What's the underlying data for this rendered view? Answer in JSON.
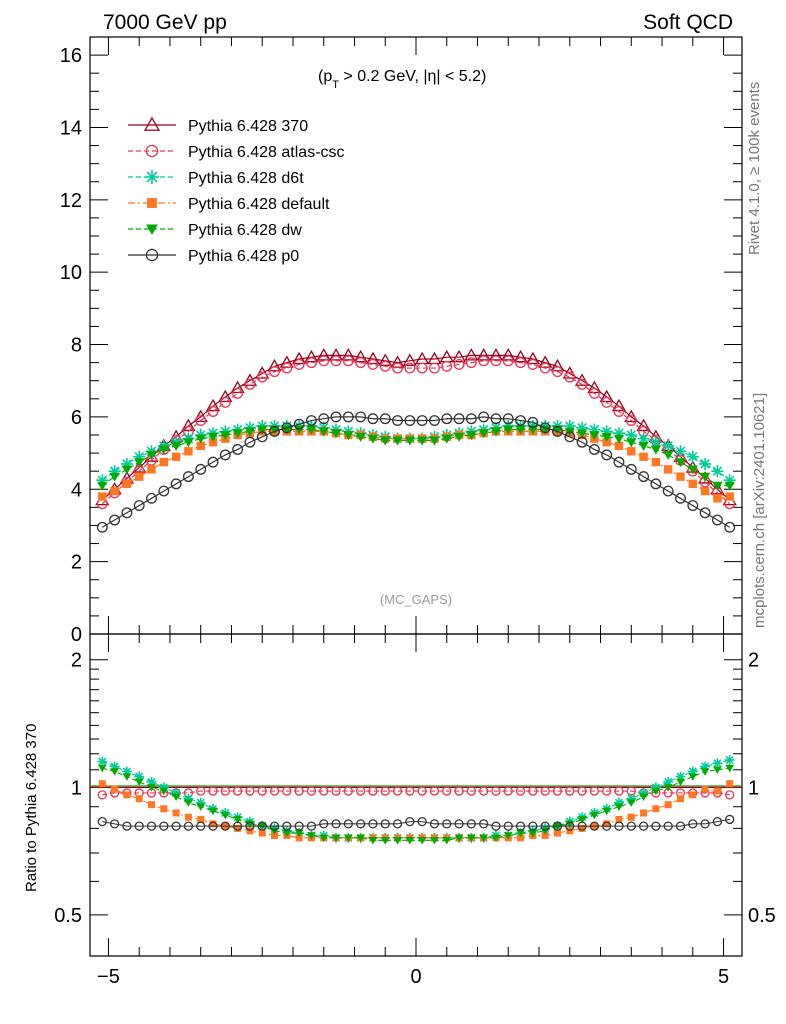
{
  "header": {
    "left": "7000 GeV pp",
    "right": "Soft QCD"
  },
  "side_labels": {
    "top": "Rivet 4.1.0, ≥ 100k events",
    "bottom": "mcplots.cern.ch [arXiv:2401.10621]"
  },
  "annotation": {
    "cut_prefix": "(p",
    "cut_sub": "T",
    "cut_suffix": " > 0.2 GeV, |η| < 5.2)",
    "analysis": "(MC_GAPS)"
  },
  "ratio_ylabel": "Ratio to Pythia 6.428 370",
  "chart_data": [
    {
      "type": "scatter",
      "panel": "main",
      "ylim": [
        0,
        16.5
      ],
      "xlim": [
        -5.3,
        5.3
      ],
      "yticks": [
        0,
        2,
        4,
        6,
        8,
        10,
        12,
        14,
        16
      ],
      "ytick_labels": [
        "0",
        "2",
        "4",
        "6",
        "8",
        "10",
        "12",
        "14",
        "16"
      ],
      "legend_position": "top-left",
      "x": [
        -5.1,
        -4.9,
        -4.7,
        -4.5,
        -4.3,
        -4.1,
        -3.9,
        -3.7,
        -3.5,
        -3.3,
        -3.1,
        -2.9,
        -2.7,
        -2.5,
        -2.3,
        -2.1,
        -1.9,
        -1.7,
        -1.5,
        -1.3,
        -1.1,
        -0.9,
        -0.7,
        -0.5,
        -0.3,
        -0.1,
        0.1,
        0.3,
        0.5,
        0.7,
        0.9,
        1.1,
        1.3,
        1.5,
        1.7,
        1.9,
        2.1,
        2.3,
        2.5,
        2.7,
        2.9,
        3.1,
        3.3,
        3.5,
        3.7,
        3.9,
        4.1,
        4.3,
        4.5,
        4.7,
        4.9,
        5.1
      ],
      "series": [
        {
          "name": "Pythia 6.428 370",
          "color": "#99001a",
          "marker": "triangle-open",
          "line": "solid",
          "values": [
            3.7,
            4.0,
            4.3,
            4.6,
            4.9,
            5.2,
            5.45,
            5.75,
            6.0,
            6.3,
            6.55,
            6.8,
            7.0,
            7.2,
            7.4,
            7.5,
            7.6,
            7.65,
            7.7,
            7.7,
            7.7,
            7.65,
            7.6,
            7.55,
            7.5,
            7.55,
            7.6,
            7.6,
            7.65,
            7.65,
            7.7,
            7.7,
            7.7,
            7.7,
            7.65,
            7.6,
            7.5,
            7.4,
            7.2,
            7.0,
            6.8,
            6.55,
            6.3,
            6.0,
            5.75,
            5.45,
            5.2,
            4.9,
            4.6,
            4.3,
            4.0,
            3.7
          ]
        },
        {
          "name": "Pythia 6.428 atlas-csc",
          "color": "#ee3355",
          "marker": "circle-open",
          "line": "dashed",
          "values": [
            3.6,
            3.9,
            4.2,
            4.5,
            4.8,
            5.1,
            5.35,
            5.6,
            5.9,
            6.15,
            6.4,
            6.65,
            6.9,
            7.1,
            7.25,
            7.35,
            7.45,
            7.5,
            7.55,
            7.55,
            7.55,
            7.5,
            7.45,
            7.4,
            7.35,
            7.35,
            7.35,
            7.35,
            7.4,
            7.45,
            7.5,
            7.55,
            7.55,
            7.55,
            7.5,
            7.45,
            7.35,
            7.25,
            7.1,
            6.9,
            6.65,
            6.4,
            6.15,
            5.9,
            5.6,
            5.35,
            5.1,
            4.8,
            4.5,
            4.2,
            3.9,
            3.6
          ]
        },
        {
          "name": "Pythia 6.428 d6t",
          "color": "#00cc99",
          "marker": "star",
          "line": "dashed",
          "values": [
            4.25,
            4.5,
            4.7,
            4.9,
            5.05,
            5.2,
            5.3,
            5.4,
            5.5,
            5.55,
            5.6,
            5.65,
            5.7,
            5.75,
            5.75,
            5.75,
            5.75,
            5.75,
            5.7,
            5.65,
            5.6,
            5.55,
            5.5,
            5.45,
            5.4,
            5.4,
            5.4,
            5.45,
            5.5,
            5.55,
            5.6,
            5.65,
            5.7,
            5.75,
            5.75,
            5.75,
            5.75,
            5.75,
            5.75,
            5.7,
            5.65,
            5.6,
            5.55,
            5.5,
            5.4,
            5.3,
            5.2,
            5.05,
            4.9,
            4.7,
            4.5,
            4.25
          ]
        },
        {
          "name": "Pythia 6.428 default",
          "color": "#ff7722",
          "marker": "square",
          "line": "dashdot",
          "values": [
            3.8,
            3.95,
            4.15,
            4.35,
            4.55,
            4.75,
            4.9,
            5.05,
            5.2,
            5.3,
            5.4,
            5.5,
            5.55,
            5.6,
            5.6,
            5.6,
            5.6,
            5.6,
            5.6,
            5.55,
            5.5,
            5.5,
            5.45,
            5.4,
            5.4,
            5.4,
            5.4,
            5.4,
            5.45,
            5.5,
            5.5,
            5.55,
            5.6,
            5.6,
            5.6,
            5.6,
            5.6,
            5.6,
            5.55,
            5.5,
            5.4,
            5.3,
            5.2,
            5.05,
            4.9,
            4.75,
            4.55,
            4.35,
            4.15,
            3.95,
            3.75,
            3.8
          ]
        },
        {
          "name": "Pythia 6.428 dw",
          "color": "#00aa00",
          "marker": "triangle-down",
          "line": "dashed",
          "values": [
            4.1,
            4.35,
            4.55,
            4.75,
            4.95,
            5.1,
            5.2,
            5.3,
            5.4,
            5.45,
            5.5,
            5.55,
            5.6,
            5.65,
            5.65,
            5.65,
            5.65,
            5.65,
            5.6,
            5.55,
            5.5,
            5.45,
            5.4,
            5.35,
            5.35,
            5.35,
            5.35,
            5.35,
            5.4,
            5.45,
            5.5,
            5.55,
            5.6,
            5.65,
            5.65,
            5.65,
            5.65,
            5.65,
            5.6,
            5.55,
            5.5,
            5.45,
            5.4,
            5.3,
            5.2,
            5.1,
            4.95,
            4.75,
            4.55,
            4.35,
            4.1,
            4.1
          ]
        },
        {
          "name": "Pythia 6.428 p0",
          "color": "#333333",
          "marker": "circle-open",
          "line": "solid",
          "values": [
            2.95,
            3.15,
            3.35,
            3.55,
            3.75,
            3.95,
            4.15,
            4.35,
            4.55,
            4.75,
            4.95,
            5.1,
            5.3,
            5.45,
            5.6,
            5.7,
            5.8,
            5.9,
            5.95,
            6.0,
            6.0,
            6.0,
            5.95,
            5.95,
            5.9,
            5.9,
            5.9,
            5.9,
            5.95,
            5.95,
            5.95,
            6.0,
            5.95,
            5.95,
            5.9,
            5.85,
            5.7,
            5.6,
            5.45,
            5.3,
            5.1,
            4.95,
            4.75,
            4.55,
            4.35,
            4.15,
            3.95,
            3.75,
            3.55,
            3.35,
            3.15,
            2.95
          ]
        }
      ]
    },
    {
      "type": "scatter",
      "panel": "ratio",
      "ylabel": "Ratio to Pythia 6.428 370",
      "yscale": "log",
      "ylim": [
        0.4,
        2.3
      ],
      "xlim": [
        -5.3,
        5.3
      ],
      "yticks": [
        0.5,
        1,
        2
      ],
      "ytick_labels": [
        "0.5",
        "1",
        "2"
      ],
      "xticks": [
        -5,
        0,
        5
      ],
      "xtick_labels": [
        "−5",
        "0",
        "5"
      ],
      "reference": 1,
      "series_ratios": {
        "Pythia 6.428 atlas-csc": [
          0.96,
          0.97,
          0.97,
          0.97,
          0.97,
          0.97,
          0.97,
          0.97,
          0.98,
          0.98,
          0.98,
          0.98,
          0.98,
          0.98,
          0.98,
          0.98,
          0.98,
          0.98,
          0.98,
          0.98,
          0.98,
          0.98,
          0.98,
          0.98,
          0.98,
          0.98,
          0.98,
          0.98,
          0.98,
          0.98,
          0.98,
          0.98,
          0.98,
          0.98,
          0.98,
          0.98,
          0.98,
          0.98,
          0.98,
          0.98,
          0.98,
          0.98,
          0.98,
          0.98,
          0.97,
          0.97,
          0.97,
          0.97,
          0.97,
          0.97,
          0.97,
          0.96
        ],
        "Pythia 6.428 d6t": [
          1.15,
          1.12,
          1.09,
          1.06,
          1.03,
          1.0,
          0.97,
          0.94,
          0.92,
          0.89,
          0.87,
          0.85,
          0.83,
          0.81,
          0.8,
          0.79,
          0.78,
          0.77,
          0.77,
          0.76,
          0.76,
          0.76,
          0.76,
          0.76,
          0.76,
          0.76,
          0.76,
          0.76,
          0.76,
          0.76,
          0.76,
          0.76,
          0.77,
          0.77,
          0.78,
          0.79,
          0.8,
          0.81,
          0.83,
          0.85,
          0.87,
          0.89,
          0.92,
          0.94,
          0.97,
          1.0,
          1.03,
          1.06,
          1.09,
          1.12,
          1.14,
          1.16
        ],
        "Pythia 6.428 default": [
          1.02,
          0.99,
          0.96,
          0.94,
          0.91,
          0.89,
          0.87,
          0.85,
          0.84,
          0.82,
          0.81,
          0.8,
          0.79,
          0.78,
          0.77,
          0.77,
          0.76,
          0.76,
          0.76,
          0.76,
          0.76,
          0.76,
          0.76,
          0.76,
          0.76,
          0.76,
          0.76,
          0.76,
          0.76,
          0.76,
          0.76,
          0.76,
          0.76,
          0.76,
          0.76,
          0.77,
          0.77,
          0.78,
          0.79,
          0.8,
          0.81,
          0.82,
          0.84,
          0.85,
          0.87,
          0.89,
          0.91,
          0.94,
          0.96,
          0.99,
          0.98,
          1.02
        ],
        "Pythia 6.428 dw": [
          1.11,
          1.09,
          1.06,
          1.03,
          1.0,
          0.98,
          0.95,
          0.92,
          0.9,
          0.88,
          0.86,
          0.84,
          0.82,
          0.81,
          0.79,
          0.78,
          0.78,
          0.77,
          0.76,
          0.76,
          0.76,
          0.76,
          0.75,
          0.75,
          0.75,
          0.75,
          0.75,
          0.75,
          0.75,
          0.76,
          0.76,
          0.76,
          0.76,
          0.77,
          0.78,
          0.78,
          0.79,
          0.81,
          0.82,
          0.84,
          0.86,
          0.88,
          0.9,
          0.92,
          0.95,
          0.98,
          1.0,
          1.03,
          1.06,
          1.09,
          1.1,
          1.11
        ],
        "Pythia 6.428 p0": [
          0.83,
          0.82,
          0.81,
          0.81,
          0.81,
          0.81,
          0.81,
          0.81,
          0.81,
          0.81,
          0.81,
          0.81,
          0.81,
          0.81,
          0.81,
          0.81,
          0.81,
          0.81,
          0.82,
          0.82,
          0.82,
          0.82,
          0.82,
          0.82,
          0.82,
          0.83,
          0.83,
          0.82,
          0.82,
          0.82,
          0.82,
          0.82,
          0.81,
          0.81,
          0.81,
          0.81,
          0.81,
          0.81,
          0.81,
          0.81,
          0.81,
          0.81,
          0.81,
          0.81,
          0.81,
          0.81,
          0.81,
          0.81,
          0.82,
          0.82,
          0.83,
          0.84
        ]
      }
    }
  ]
}
